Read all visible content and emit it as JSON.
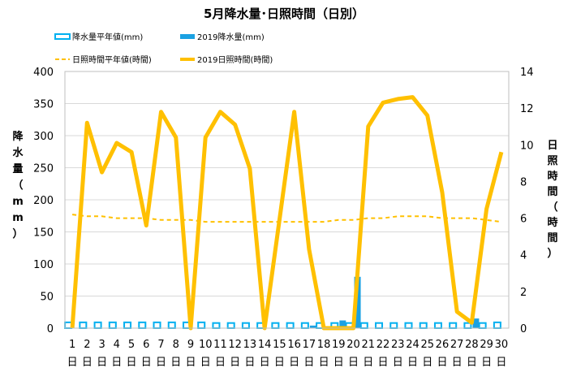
{
  "chart_data": {
    "type": "bar+line",
    "title": "5月降水量･日照時間（日別）",
    "categories": [
      "1",
      "2",
      "3",
      "4",
      "5",
      "6",
      "7",
      "8",
      "9",
      "10",
      "11",
      "12",
      "13",
      "14",
      "15",
      "16",
      "17",
      "18",
      "19",
      "20",
      "21",
      "22",
      "23",
      "24",
      "25",
      "26",
      "27",
      "28",
      "29",
      "30"
    ],
    "day_suffix": "日",
    "y_left": {
      "label": "降水量（mm）",
      "ylim": [
        0,
        400
      ],
      "ticks": [
        0,
        50,
        100,
        150,
        200,
        250,
        300,
        350,
        400
      ]
    },
    "y_right": {
      "label": "日照時間（時間）",
      "ylim": [
        0,
        14
      ],
      "ticks": [
        0,
        2,
        4,
        6,
        8,
        10,
        12,
        14
      ]
    },
    "grid": "horizontal",
    "legend_position": "top",
    "series": [
      {
        "name": "降水量平年値(mm)",
        "kind": "bar",
        "axis": "left",
        "style": "outline",
        "color": "#00b0f0",
        "values": [
          9,
          9,
          9,
          9,
          9,
          9,
          9,
          9,
          9,
          9,
          8,
          8,
          8,
          8,
          8,
          8,
          8,
          8,
          8,
          8,
          8,
          8,
          8,
          8,
          8,
          8,
          8,
          8,
          8,
          9
        ]
      },
      {
        "name": "2019降水量(mm)",
        "kind": "bar",
        "axis": "left",
        "style": "filled",
        "color": "#1ba1e2",
        "values": [
          0,
          0,
          0,
          0,
          0,
          0,
          0,
          0,
          0,
          0,
          0,
          0,
          0,
          0,
          0,
          0,
          4,
          0,
          12,
          80,
          0,
          0,
          0,
          0,
          0,
          0,
          0,
          15,
          0,
          0
        ]
      },
      {
        "name": "日照時間平年値(時間)",
        "kind": "line",
        "axis": "right",
        "style": "dashed",
        "color": "#ffc000",
        "values": [
          6.2,
          6.1,
          6.1,
          6.0,
          6.0,
          6.0,
          5.9,
          5.9,
          5.9,
          5.8,
          5.8,
          5.8,
          5.8,
          5.8,
          5.8,
          5.8,
          5.8,
          5.8,
          5.9,
          5.9,
          6.0,
          6.0,
          6.1,
          6.1,
          6.1,
          6.0,
          6.0,
          6.0,
          5.9,
          5.8
        ]
      },
      {
        "name": "2019日照時間(時間)",
        "kind": "line",
        "axis": "right",
        "style": "solid",
        "color": "#ffc000",
        "values": [
          0,
          11.2,
          8.5,
          10.1,
          9.6,
          5.6,
          11.8,
          10.4,
          0,
          10.4,
          11.8,
          11.1,
          8.7,
          0,
          5.9,
          11.8,
          4.3,
          0,
          0,
          0,
          11.0,
          12.3,
          12.5,
          12.6,
          11.6,
          7.4,
          0.9,
          0.3,
          6.5,
          9.6
        ]
      }
    ]
  }
}
